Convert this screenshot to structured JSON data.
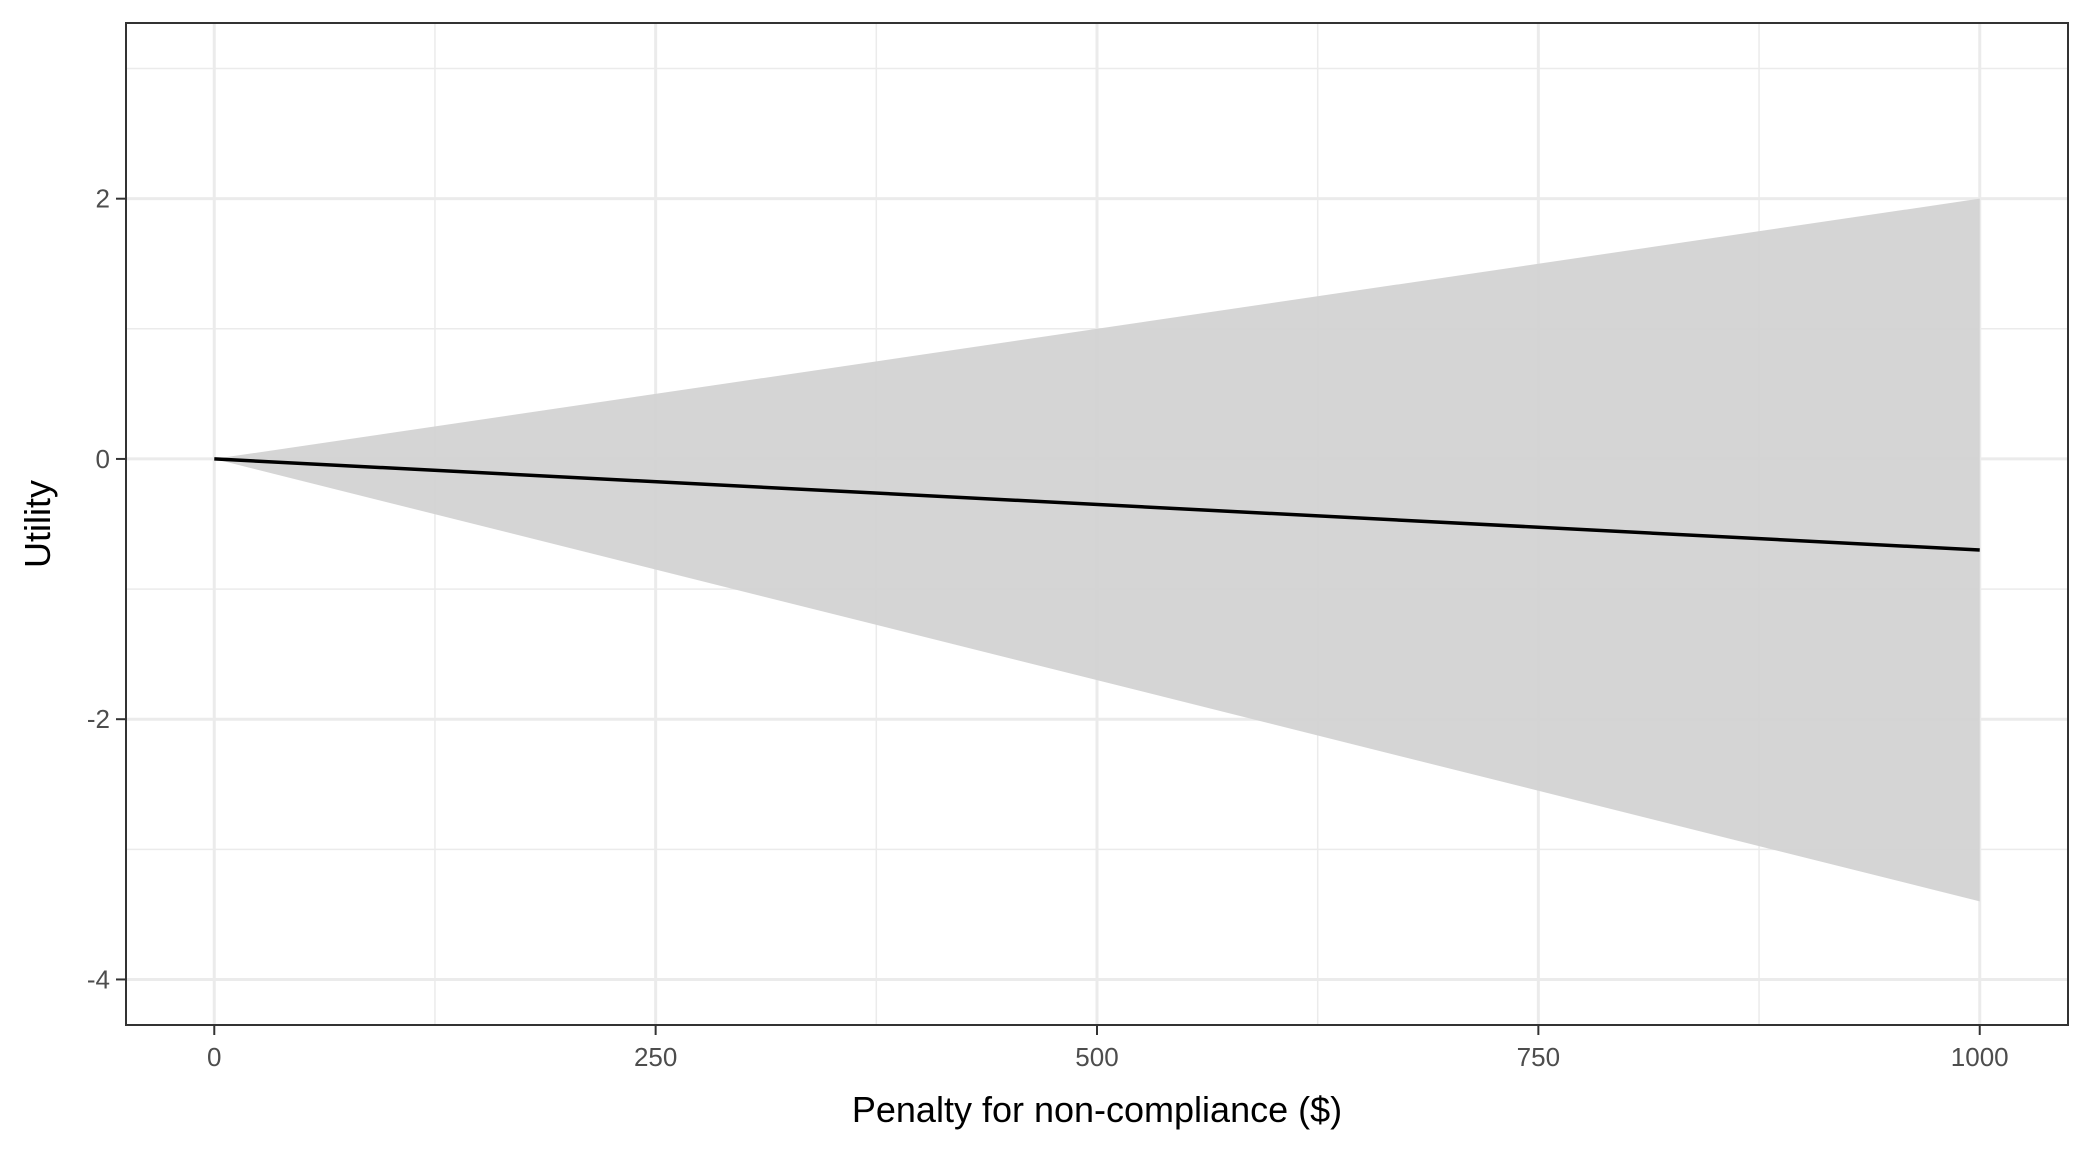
{
  "chart_data": {
    "type": "line",
    "title": "",
    "xlabel": "Penalty for non-compliance ($)",
    "ylabel": "Utility",
    "xlim": [
      -50,
      1050
    ],
    "ylim": [
      -4.35,
      3.35
    ],
    "x_ticks": [
      0,
      250,
      500,
      750,
      1000
    ],
    "x_tick_labels": [
      "0",
      "250",
      "500",
      "750",
      "1000"
    ],
    "y_ticks": [
      -4,
      -2,
      0,
      2
    ],
    "y_tick_labels": [
      "-4",
      "-2",
      "0",
      "2"
    ],
    "x_minor": [
      125,
      375,
      625,
      875
    ],
    "y_minor": [
      -3,
      -1,
      1,
      3
    ],
    "grid": true,
    "series": [
      {
        "x": [
          0,
          1000
        ],
        "y": [
          0,
          -0.7
        ],
        "lower": [
          0,
          -3.4
        ],
        "upper": [
          0,
          2.0
        ]
      }
    ],
    "colors": {
      "line": "#000000",
      "ribbon": "#d3d3d3",
      "grid": "#ebebeb",
      "panel_border": "#333333",
      "tick_text": "#4d4d4d"
    }
  }
}
